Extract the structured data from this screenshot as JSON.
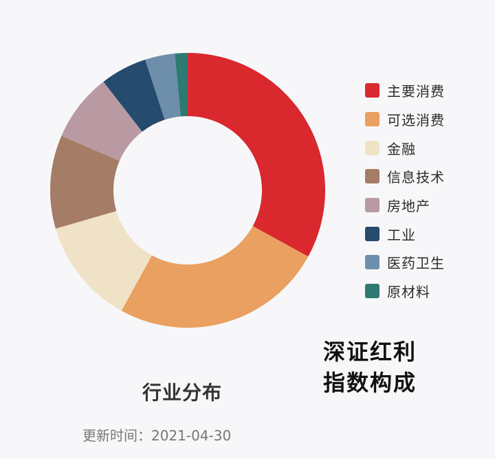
{
  "chart_data": {
    "type": "pie",
    "style": "donut",
    "categories": [
      "主要消费",
      "可选消费",
      "金融",
      "信息技术",
      "房地产",
      "工业",
      "医药卫生",
      "原材料"
    ],
    "values": [
      33.0,
      25.0,
      12.5,
      11.0,
      8.0,
      5.5,
      3.5,
      1.5
    ],
    "unit": "%",
    "colors": [
      "#d9282e",
      "#e9a060",
      "#f0e2c6",
      "#a57c66",
      "#b99aa3",
      "#254b6e",
      "#6e8fab",
      "#2e7a72"
    ],
    "legend_position": "right",
    "title": "行业分布"
  },
  "main_title_lines": [
    "深证红利",
    "指数构成"
  ],
  "update_text": "更新时间：2021-04-30"
}
